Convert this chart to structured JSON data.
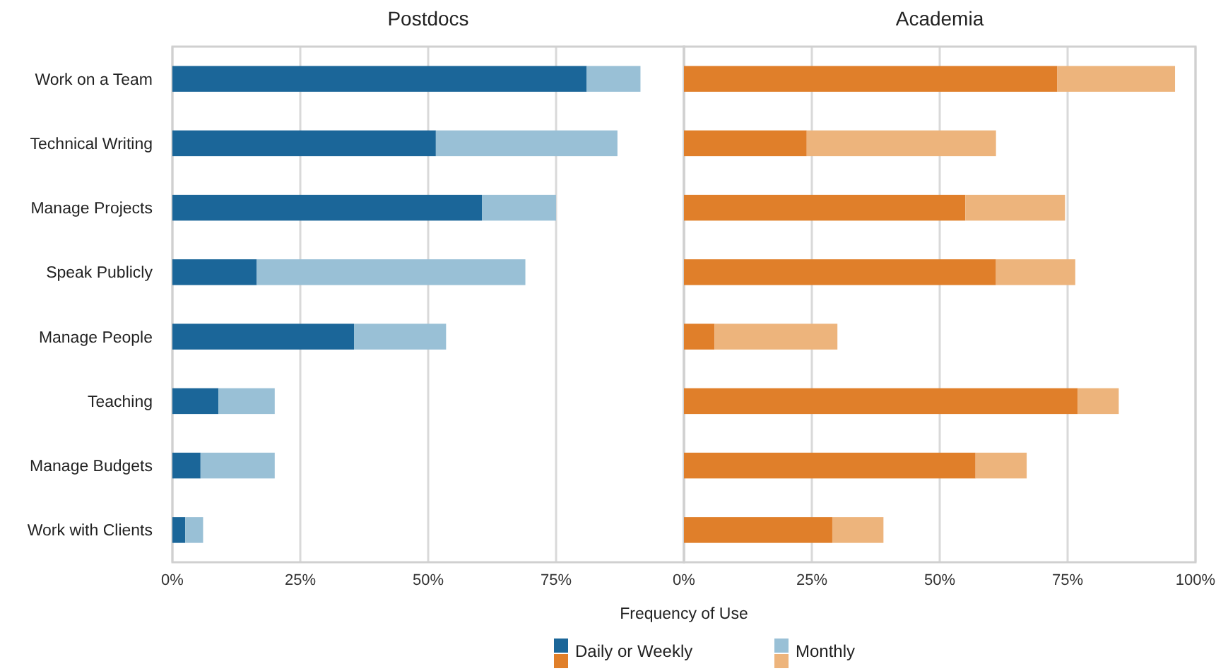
{
  "chart_data": [
    {
      "type": "bar",
      "title": "Postdocs",
      "xlabel": "Frequency of Use",
      "orientation": "horizontal",
      "stacked": true,
      "categories": [
        "Work on a Team",
        "Technical Writing",
        "Manage Projects",
        "Speak Publicly",
        "Manage People",
        "Teaching",
        "Manage Budgets",
        "Work with Clients"
      ],
      "series": [
        {
          "name": "Daily or Weekly",
          "color": "#1b6699",
          "values": [
            81,
            51.5,
            60.5,
            16.5,
            35.5,
            9,
            5.5,
            2.5
          ]
        },
        {
          "name": "Monthly",
          "color": "#99c0d6",
          "values": [
            10.5,
            35.5,
            14.5,
            52.5,
            18,
            11,
            14.5,
            3.5
          ]
        }
      ],
      "xlim": [
        0,
        100
      ],
      "xticks": [
        {
          "value": 0,
          "label": "0%"
        },
        {
          "value": 25,
          "label": "25%"
        },
        {
          "value": 50,
          "label": "50%"
        },
        {
          "value": 75,
          "label": "75%"
        },
        {
          "value": 100,
          "label": null
        }
      ],
      "grid": "x",
      "legend": "bottom"
    },
    {
      "type": "bar",
      "title": "Academia",
      "orientation": "horizontal",
      "stacked": true,
      "series": [
        {
          "color": "#e07f2a",
          "values": [
            73,
            24,
            55,
            61,
            6,
            77,
            57,
            29
          ]
        },
        {
          "color": "#edb47c",
          "values": [
            23,
            37,
            19.5,
            15.5,
            24,
            8,
            10,
            10
          ]
        }
      ],
      "xlim": [
        0,
        100
      ],
      "xticks": [
        {
          "value": 0,
          "label": "0%"
        },
        {
          "value": 25,
          "label": "25%"
        },
        {
          "value": 50,
          "label": "50%"
        },
        {
          "value": 75,
          "label": "75%"
        },
        {
          "value": 100,
          "label": "100%"
        }
      ],
      "grid": "x",
      "legend": "bottom",
      "tick_labels": "x"
    }
  ]
}
